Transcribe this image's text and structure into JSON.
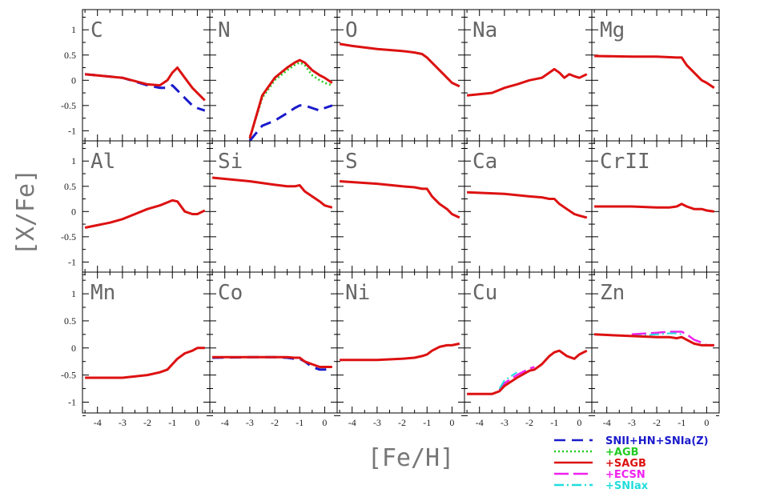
{
  "chart_data": {
    "type": "line",
    "xlabel": "[Fe/H]",
    "ylabel": "[X/Fe]",
    "xlim": [
      -4.6,
      0.5
    ],
    "ylim": [
      -1.2,
      1.4
    ],
    "xticks": [
      "-4",
      "-3",
      "-2",
      "-1",
      "0"
    ],
    "xtick_values": [
      -4,
      -3,
      -2,
      -1,
      0
    ],
    "yticks": [
      "-1",
      "-0.5",
      "0",
      "0.5",
      "1"
    ],
    "ytick_values": [
      -1,
      -0.5,
      0,
      0.5,
      1
    ],
    "legend": {
      "placement": "bottom-right",
      "entries": [
        {
          "label": "SNII+HN+SNIa(Z)",
          "color": "#1a1acc",
          "dash": "dash"
        },
        {
          "label": "+AGB",
          "color": "#22cc22",
          "dash": "dot"
        },
        {
          "label": "+SAGB",
          "color": "#dd1111",
          "dash": "solid"
        },
        {
          "label": "+ECSN",
          "color": "#ee22ee",
          "dash": "longdash"
        },
        {
          "label": "+SNIax",
          "color": "#22dddd",
          "dash": "dashdot"
        }
      ]
    },
    "panels": [
      {
        "element": "C",
        "models": {
          "SNII+HN+SNIa(Z)": {
            "x": [
              -4.5,
              -3,
              -2,
              -1.5,
              -1.2,
              -1,
              -0.8,
              -0.5,
              -0.2,
              0,
              0.3
            ],
            "y": [
              0.12,
              0.05,
              -0.1,
              -0.15,
              -0.15,
              -0.1,
              -0.2,
              -0.35,
              -0.5,
              -0.55,
              -0.6
            ]
          },
          "+SAGB": {
            "x": [
              -4.5,
              -3,
              -2,
              -1.5,
              -1.2,
              -1,
              -0.8,
              -0.5,
              -0.2,
              0,
              0.3
            ],
            "y": [
              0.12,
              0.05,
              -0.08,
              -0.1,
              0.0,
              0.15,
              0.25,
              0.05,
              -0.15,
              -0.25,
              -0.4
            ]
          }
        }
      },
      {
        "element": "N",
        "models": {
          "SNII+HN+SNIa(Z)": {
            "x": [
              -3,
              -2.5,
              -2,
              -1.5,
              -1.2,
              -1,
              -0.8,
              -0.5,
              -0.2,
              0,
              0.3
            ],
            "y": [
              -1.2,
              -0.9,
              -0.8,
              -0.65,
              -0.55,
              -0.5,
              -0.5,
              -0.55,
              -0.6,
              -0.55,
              -0.5
            ]
          },
          "+AGB": {
            "x": [
              -3,
              -2.5,
              -2,
              -1.5,
              -1.2,
              -1,
              -0.8,
              -0.5,
              -0.2,
              0,
              0.3
            ],
            "y": [
              -1.15,
              -0.35,
              0.0,
              0.2,
              0.3,
              0.35,
              0.3,
              0.1,
              0.0,
              -0.05,
              -0.1
            ]
          },
          "+SAGB": {
            "x": [
              -3,
              -2.5,
              -2,
              -1.5,
              -1.2,
              -1,
              -0.8,
              -0.5,
              -0.2,
              0,
              0.3
            ],
            "y": [
              -1.15,
              -0.3,
              0.05,
              0.25,
              0.35,
              0.4,
              0.35,
              0.2,
              0.1,
              0.05,
              -0.05
            ]
          }
        }
      },
      {
        "element": "O",
        "models": {
          "+SAGB": {
            "x": [
              -4.5,
              -4,
              -3,
              -2,
              -1.5,
              -1.2,
              -1,
              -0.7,
              -0.4,
              -0.2,
              0,
              0.3
            ],
            "y": [
              0.72,
              0.68,
              0.62,
              0.58,
              0.55,
              0.52,
              0.45,
              0.3,
              0.15,
              0.05,
              -0.05,
              -0.12
            ]
          }
        }
      },
      {
        "element": "Na",
        "models": {
          "+SAGB": {
            "x": [
              -4.5,
              -3.5,
              -3,
              -2.5,
              -2,
              -1.5,
              -1.2,
              -1,
              -0.8,
              -0.6,
              -0.4,
              -0.2,
              0,
              0.3
            ],
            "y": [
              -0.3,
              -0.25,
              -0.15,
              -0.08,
              0.0,
              0.05,
              0.15,
              0.22,
              0.15,
              0.05,
              0.12,
              0.08,
              0.05,
              0.12
            ]
          }
        }
      },
      {
        "element": "Mg",
        "models": {
          "+SAGB": {
            "x": [
              -4.5,
              -3,
              -2,
              -1.2,
              -1,
              -0.8,
              -0.5,
              -0.2,
              0,
              0.3
            ],
            "y": [
              0.48,
              0.47,
              0.47,
              0.45,
              0.45,
              0.3,
              0.15,
              0.0,
              -0.05,
              -0.15
            ]
          }
        }
      },
      {
        "element": "Al",
        "models": {
          "+SAGB": {
            "x": [
              -4.5,
              -3.5,
              -3,
              -2.5,
              -2,
              -1.5,
              -1,
              -0.8,
              -0.5,
              -0.2,
              0,
              0.3
            ],
            "y": [
              -0.32,
              -0.22,
              -0.15,
              -0.05,
              0.05,
              0.12,
              0.22,
              0.2,
              0.0,
              -0.05,
              -0.05,
              0.02
            ]
          }
        }
      },
      {
        "element": "Si",
        "models": {
          "+SAGB": {
            "x": [
              -4.5,
              -3,
              -2,
              -1.5,
              -1.2,
              -1,
              -0.8,
              -0.5,
              -0.2,
              0,
              0.3
            ],
            "y": [
              0.67,
              0.6,
              0.53,
              0.5,
              0.5,
              0.52,
              0.4,
              0.3,
              0.2,
              0.12,
              0.08
            ]
          }
        }
      },
      {
        "element": "S",
        "models": {
          "+SAGB": {
            "x": [
              -4.5,
              -3,
              -2,
              -1.5,
              -1.2,
              -1,
              -0.8,
              -0.5,
              -0.2,
              0,
              0.3
            ],
            "y": [
              0.6,
              0.55,
              0.5,
              0.48,
              0.45,
              0.45,
              0.3,
              0.15,
              0.05,
              -0.05,
              -0.12
            ]
          }
        }
      },
      {
        "element": "Ca",
        "models": {
          "+SAGB": {
            "x": [
              -4.5,
              -3,
              -2,
              -1.5,
              -1.2,
              -1,
              -0.8,
              -0.5,
              -0.2,
              0,
              0.3
            ],
            "y": [
              0.38,
              0.35,
              0.3,
              0.28,
              0.25,
              0.25,
              0.15,
              0.05,
              -0.05,
              -0.08,
              -0.12
            ]
          }
        }
      },
      {
        "element": "CrII",
        "models": {
          "+SAGB": {
            "x": [
              -4.5,
              -3,
              -2,
              -1.5,
              -1.2,
              -1,
              -0.8,
              -0.5,
              -0.2,
              0,
              0.3
            ],
            "y": [
              0.1,
              0.1,
              0.08,
              0.08,
              0.1,
              0.15,
              0.1,
              0.05,
              0.05,
              0.02,
              0.0
            ]
          }
        }
      },
      {
        "element": "Mn",
        "models": {
          "+SAGB": {
            "x": [
              -4.5,
              -3,
              -2,
              -1.5,
              -1.2,
              -1,
              -0.8,
              -0.5,
              -0.2,
              0,
              0.3
            ],
            "y": [
              -0.55,
              -0.55,
              -0.5,
              -0.45,
              -0.4,
              -0.3,
              -0.2,
              -0.1,
              -0.05,
              0.0,
              0.0
            ]
          }
        }
      },
      {
        "element": "Co",
        "models": {
          "SNII+HN+SNIa(Z)": {
            "x": [
              -4.5,
              -3,
              -2,
              -1.5,
              -1.2,
              -1,
              -0.8,
              -0.5,
              -0.2,
              0,
              0.3
            ],
            "y": [
              -0.18,
              -0.17,
              -0.17,
              -0.18,
              -0.2,
              -0.2,
              -0.25,
              -0.35,
              -0.4,
              -0.4,
              -0.38
            ]
          },
          "+SAGB": {
            "x": [
              -4.5,
              -3,
              -2,
              -1.5,
              -1.2,
              -1,
              -0.8,
              -0.5,
              -0.2,
              0,
              0.3
            ],
            "y": [
              -0.17,
              -0.17,
              -0.17,
              -0.17,
              -0.18,
              -0.18,
              -0.25,
              -0.3,
              -0.35,
              -0.35,
              -0.35
            ]
          }
        }
      },
      {
        "element": "Ni",
        "models": {
          "+SAGB": {
            "x": [
              -4.5,
              -3,
              -2,
              -1.5,
              -1.2,
              -1,
              -0.8,
              -0.5,
              -0.2,
              0,
              0.3
            ],
            "y": [
              -0.22,
              -0.22,
              -0.2,
              -0.18,
              -0.15,
              -0.12,
              -0.05,
              0.02,
              0.05,
              0.05,
              0.08
            ]
          }
        }
      },
      {
        "element": "Cu",
        "models": {
          "+SAGB": {
            "x": [
              -4.5,
              -3.5,
              -3.2,
              -3,
              -2.5,
              -2,
              -1.8,
              -1.5,
              -1.2,
              -1,
              -0.8,
              -0.5,
              -0.2,
              0,
              0.3
            ],
            "y": [
              -0.85,
              -0.85,
              -0.8,
              -0.7,
              -0.55,
              -0.42,
              -0.4,
              -0.3,
              -0.15,
              -0.08,
              -0.05,
              -0.15,
              -0.2,
              -0.12,
              -0.05
            ]
          },
          "+ECSN": {
            "x": [
              -3.2,
              -3,
              -2.5,
              -2,
              -1.8
            ],
            "y": [
              -0.78,
              -0.65,
              -0.5,
              -0.38,
              -0.35
            ]
          },
          "+SNIax": {
            "x": [
              -3.2,
              -3,
              -2.5
            ],
            "y": [
              -0.75,
              -0.6,
              -0.45
            ]
          }
        }
      },
      {
        "element": "Zn",
        "models": {
          "+SAGB": {
            "x": [
              -4.5,
              -3,
              -2,
              -1.5,
              -1.2,
              -1,
              -0.8,
              -0.5,
              -0.2,
              0,
              0.3
            ],
            "y": [
              0.25,
              0.22,
              0.2,
              0.2,
              0.18,
              0.2,
              0.15,
              0.08,
              0.05,
              0.05,
              0.05
            ]
          },
          "+ECSN": {
            "x": [
              -3,
              -2,
              -1.5,
              -1.2,
              -1,
              -0.8,
              -0.5,
              -0.2,
              0,
              0.3
            ],
            "y": [
              0.25,
              0.28,
              0.3,
              0.3,
              0.3,
              0.25,
              0.15,
              0.1,
              0.05,
              0.05
            ]
          },
          "+SNIax": {
            "x": [
              -3,
              -2,
              -1.5,
              -1.2,
              -1
            ],
            "y": [
              0.22,
              0.25,
              0.27,
              0.27,
              0.25
            ]
          }
        }
      }
    ]
  }
}
